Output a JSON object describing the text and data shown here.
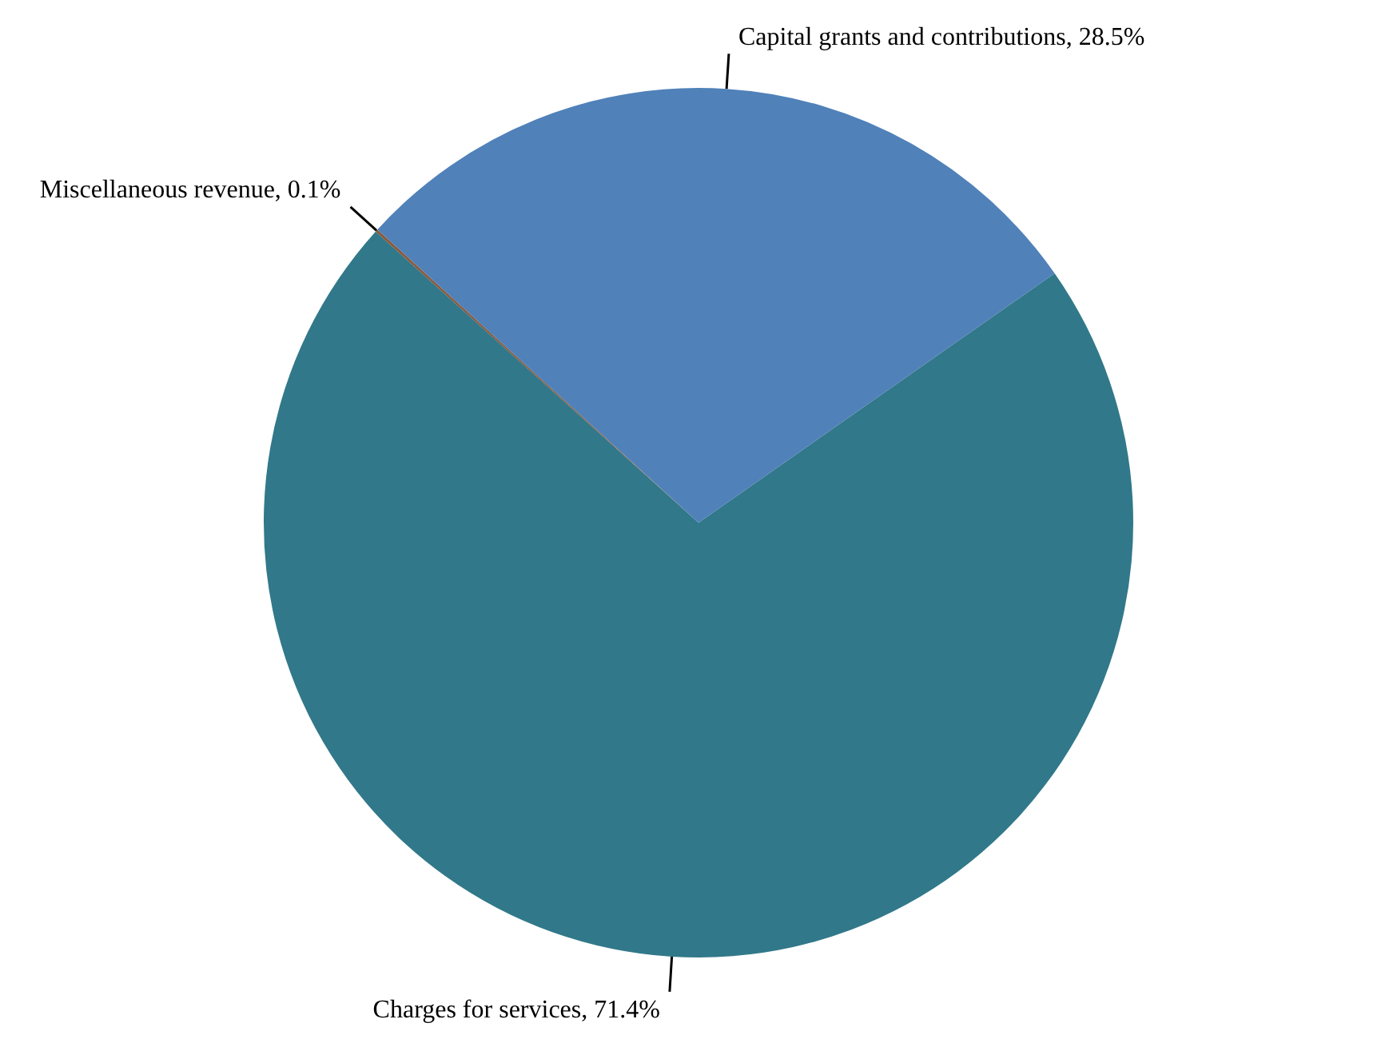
{
  "chart_data": {
    "type": "pie",
    "categories": [
      "Charges for services",
      "Miscellaneous revenue",
      "Capital grants and contributions"
    ],
    "values": [
      71.4,
      0.1,
      28.5
    ],
    "colors": [
      "#31788a",
      "#8a5a3c",
      "#5081b9"
    ],
    "value_labels": [
      "71.4%",
      "0.1%",
      "28.5%"
    ],
    "legend": false
  }
}
